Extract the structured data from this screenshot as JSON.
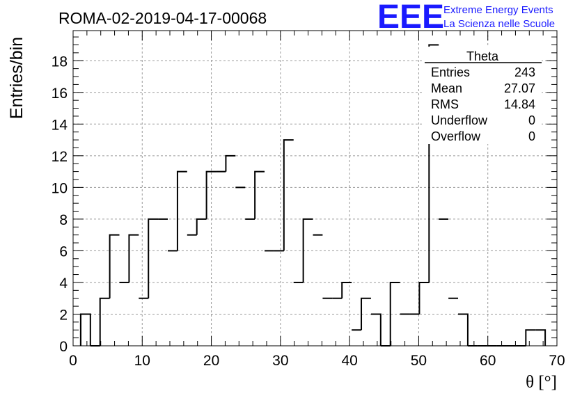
{
  "chart_data": {
    "type": "histogram",
    "title": "ROMA-02-2019-04-17-00068",
    "xlabel": "θ [°]",
    "ylabel": "Entries/bin",
    "xlim": [
      0,
      70
    ],
    "ylim": [
      0,
      19.9
    ],
    "grid": true,
    "bin_width": 1.4,
    "bin_edges_start": 1.1,
    "values": [
      2,
      0,
      3,
      7,
      4,
      7,
      3,
      8,
      8,
      6,
      11,
      7,
      8,
      11,
      11,
      12,
      10,
      8,
      11,
      6,
      6,
      13,
      4,
      8,
      7,
      3,
      3,
      4,
      1,
      3,
      2,
      0,
      4,
      2,
      2,
      4,
      19,
      8,
      3,
      2,
      0,
      0,
      0,
      0,
      0,
      0,
      1,
      1
    ],
    "x_ticks": [
      0,
      10,
      20,
      30,
      40,
      50,
      60,
      70
    ],
    "y_ticks": [
      0,
      2,
      4,
      6,
      8,
      10,
      12,
      14,
      16,
      18
    ],
    "stats": {
      "name": "Theta",
      "rows": [
        {
          "label": "Entries",
          "value": "243"
        },
        {
          "label": "Mean",
          "value": "27.07"
        },
        {
          "label": "RMS",
          "value": "14.84"
        },
        {
          "label": "Underflow",
          "value": "0"
        },
        {
          "label": "Overflow",
          "value": "0"
        }
      ]
    }
  },
  "logo": {
    "mark": "EEE",
    "line1": "Extreme Energy Events",
    "line2": "La Scienza nelle Scuole",
    "color": "#1a1aff"
  }
}
